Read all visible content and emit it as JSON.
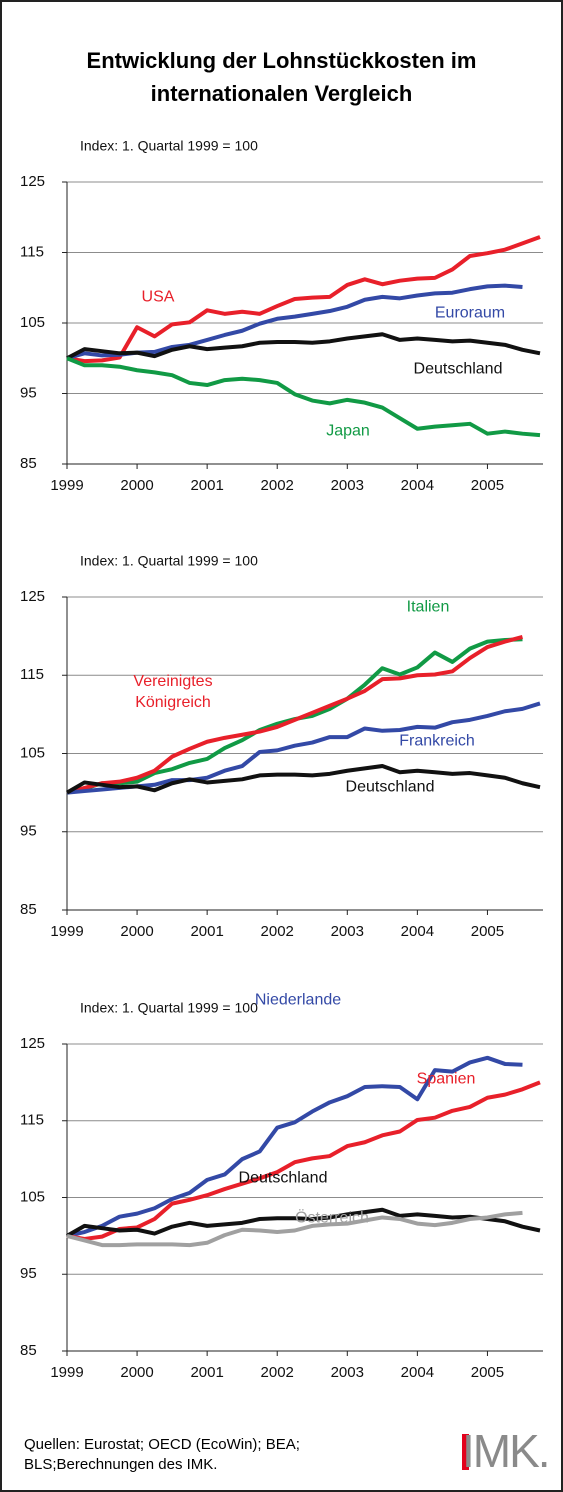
{
  "title": "Entwicklung der Lohnstückkosten im internationalen Vergleich",
  "source": "Quellen: Eurostat; OECD (EcoWin); BEA; BLS;Berechnungen des IMK.",
  "logo": "IMK.",
  "chart_data": [
    {
      "type": "line",
      "subtitle": "Index: 1. Quartal 1999 = 100",
      "x": [
        1999,
        1999.25,
        1999.5,
        1999.75,
        2000,
        2000.25,
        2000.5,
        2000.75,
        2001,
        2001.25,
        2001.5,
        2001.75,
        2002,
        2002.25,
        2002.5,
        2002.75,
        2003,
        2003.25,
        2003.5,
        2003.75,
        2004,
        2004.25,
        2004.5,
        2004.75,
        2005,
        2005.25,
        2005.5,
        2005.75
      ],
      "xlim": [
        1999,
        2005.75
      ],
      "xticks": [
        1999,
        2000,
        2001,
        2002,
        2003,
        2004,
        2005
      ],
      "ylim": [
        85,
        125
      ],
      "yticks": [
        85,
        95,
        105,
        115,
        125
      ],
      "grid": true,
      "series": [
        {
          "name": "USA",
          "color": "#e8202a",
          "values": [
            100,
            99.6,
            99.7,
            100.1,
            104.4,
            103.1,
            104.8,
            105.1,
            106.8,
            106.3,
            106.6,
            106.3,
            107.4,
            108.4,
            108.6,
            108.7,
            110.4,
            111.2,
            110.5,
            111,
            111.3,
            111.4,
            112.6,
            114.5,
            114.9,
            115.4,
            116.3,
            117.2
          ]
        },
        {
          "name": "Euroraum",
          "color": "#3349a6",
          "values": [
            100,
            100.7,
            100.4,
            100.5,
            100.8,
            100.9,
            101.6,
            101.9,
            102.6,
            103.3,
            103.9,
            104.9,
            105.6,
            105.9,
            106.3,
            106.7,
            107.3,
            108.3,
            108.7,
            108.5,
            108.9,
            109.2,
            109.3,
            109.8,
            110.2,
            110.3,
            110.1,
            null
          ]
        },
        {
          "name": "Deutschland",
          "color": "#111111",
          "values": [
            100,
            101.3,
            101,
            100.7,
            100.8,
            100.3,
            101.2,
            101.7,
            101.3,
            101.5,
            101.7,
            102.2,
            102.3,
            102.3,
            102.2,
            102.4,
            102.8,
            103.1,
            103.4,
            102.6,
            102.8,
            102.6,
            102.4,
            102.5,
            102.2,
            101.9,
            101.2,
            100.7
          ]
        },
        {
          "name": "Japan",
          "color": "#119a45",
          "values": [
            100,
            99,
            99,
            98.8,
            98.3,
            98,
            97.6,
            96.5,
            96.2,
            96.9,
            97.1,
            96.9,
            96.5,
            94.9,
            94,
            93.6,
            94.1,
            93.7,
            93,
            91.5,
            90,
            90.3,
            90.5,
            90.7,
            89.3,
            89.6,
            89.3,
            89.1
          ]
        }
      ]
    },
    {
      "type": "line",
      "subtitle": "Index: 1. Quartal 1999 = 100",
      "x": [
        1999,
        1999.25,
        1999.5,
        1999.75,
        2000,
        2000.25,
        2000.5,
        2000.75,
        2001,
        2001.25,
        2001.5,
        2001.75,
        2002,
        2002.25,
        2002.5,
        2002.75,
        2003,
        2003.25,
        2003.5,
        2003.75,
        2004,
        2004.25,
        2004.5,
        2004.75,
        2005,
        2005.25,
        2005.5,
        2005.75
      ],
      "xlim": [
        1999,
        2005.75
      ],
      "xticks": [
        1999,
        2000,
        2001,
        2002,
        2003,
        2004,
        2005
      ],
      "ylim": [
        85,
        125
      ],
      "yticks": [
        85,
        95,
        105,
        115,
        125
      ],
      "grid": true,
      "series": [
        {
          "name": "Italien",
          "color": "#119a45",
          "values": [
            100,
            100.5,
            101.2,
            101.2,
            101.4,
            102.5,
            103,
            103.8,
            104.3,
            105.7,
            106.7,
            108,
            108.8,
            109.4,
            109.8,
            110.7,
            112,
            113.8,
            115.9,
            115.1,
            116,
            117.9,
            116.7,
            118.4,
            119.3,
            119.5,
            119.6,
            null
          ]
        },
        {
          "name": "Vereinigtes Königreich",
          "color": "#e8202a",
          "values": [
            100,
            100.6,
            101.2,
            101.4,
            101.9,
            102.8,
            104.6,
            105.6,
            106.5,
            107,
            107.4,
            107.8,
            108.4,
            109.3,
            110.2,
            111.1,
            112,
            113,
            114.5,
            114.6,
            115,
            115.1,
            115.5,
            117.2,
            118.6,
            119.3,
            119.9,
            null
          ]
        },
        {
          "name": "Frankreich",
          "color": "#3349a6",
          "values": [
            100,
            100.2,
            100.4,
            100.6,
            100.8,
            101,
            101.6,
            101.6,
            101.9,
            102.8,
            103.4,
            105.2,
            105.4,
            106,
            106.4,
            107.1,
            107.1,
            108.2,
            107.9,
            108,
            108.4,
            108.3,
            109,
            109.3,
            109.8,
            110.4,
            110.7,
            111.4
          ]
        },
        {
          "name": "Deutschland",
          "color": "#111111",
          "values": [
            100,
            101.3,
            101,
            100.7,
            100.8,
            100.3,
            101.2,
            101.7,
            101.3,
            101.5,
            101.7,
            102.2,
            102.3,
            102.3,
            102.2,
            102.4,
            102.8,
            103.1,
            103.4,
            102.6,
            102.8,
            102.6,
            102.4,
            102.5,
            102.2,
            101.9,
            101.2,
            100.7
          ]
        }
      ]
    },
    {
      "type": "line",
      "subtitle": "Index: 1. Quartal 1999 = 100",
      "x": [
        1999,
        1999.25,
        1999.5,
        1999.75,
        2000,
        2000.25,
        2000.5,
        2000.75,
        2001,
        2001.25,
        2001.5,
        2001.75,
        2002,
        2002.25,
        2002.5,
        2002.75,
        2003,
        2003.25,
        2003.5,
        2003.75,
        2004,
        2004.25,
        2004.5,
        2004.75,
        2005,
        2005.25,
        2005.5,
        2005.75
      ],
      "xlim": [
        1999,
        2005.75
      ],
      "xticks": [
        1999,
        2000,
        2001,
        2002,
        2003,
        2004,
        2005
      ],
      "ylim": [
        85,
        125
      ],
      "yticks": [
        85,
        95,
        105,
        115,
        125
      ],
      "grid": true,
      "series": [
        {
          "name": "Niederlande",
          "color": "#3349a6",
          "values": [
            100,
            100.5,
            101.3,
            102.5,
            102.9,
            103.6,
            104.8,
            105.6,
            107.3,
            108,
            110,
            111,
            114.1,
            114.8,
            116.2,
            117.4,
            118.2,
            119.4,
            119.5,
            119.4,
            117.8,
            121.6,
            121.4,
            122.6,
            123.2,
            122.4,
            122.3,
            null
          ]
        },
        {
          "name": "Spanien",
          "color": "#e8202a",
          "values": [
            100,
            99.6,
            99.9,
            100.9,
            101.1,
            102.2,
            104.2,
            104.7,
            105.3,
            106.1,
            106.8,
            107.5,
            108.3,
            109.6,
            110.1,
            110.4,
            111.7,
            112.2,
            113.1,
            113.6,
            115.1,
            115.4,
            116.3,
            116.8,
            118,
            118.4,
            119.1,
            120
          ]
        },
        {
          "name": "Deutschland",
          "color": "#111111",
          "values": [
            100,
            101.3,
            101,
            100.7,
            100.8,
            100.3,
            101.2,
            101.7,
            101.3,
            101.5,
            101.7,
            102.2,
            102.3,
            102.3,
            102.2,
            102.4,
            102.8,
            103.1,
            103.4,
            102.6,
            102.8,
            102.6,
            102.4,
            102.5,
            102.2,
            101.9,
            101.2,
            100.7
          ]
        },
        {
          "name": "Österreich",
          "color": "#a0a0a0",
          "values": [
            100,
            99.4,
            98.8,
            98.8,
            98.9,
            98.9,
            98.9,
            98.8,
            99.1,
            100.1,
            100.8,
            100.7,
            100.5,
            100.7,
            101.3,
            101.5,
            101.6,
            102,
            102.4,
            102.2,
            101.6,
            101.4,
            101.7,
            102.2,
            102.4,
            102.8,
            103,
            null
          ]
        }
      ]
    }
  ]
}
